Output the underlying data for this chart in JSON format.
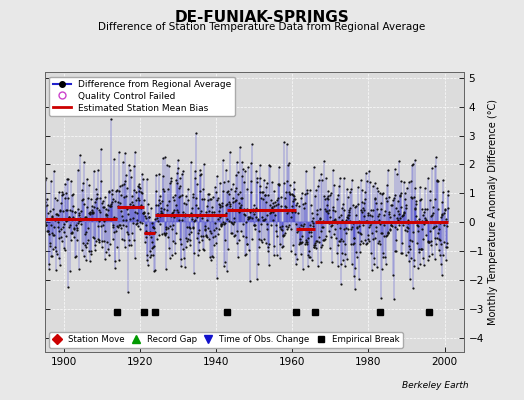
{
  "title": "DE-FUNIAK-SPRINGS",
  "subtitle": "Difference of Station Temperature Data from Regional Average",
  "ylabel": "Monthly Temperature Anomaly Difference (°C)",
  "xlim": [
    1895,
    2005
  ],
  "ylim": [
    -4.5,
    5.2
  ],
  "yticks": [
    -4,
    -3,
    -2,
    -1,
    0,
    1,
    2,
    3,
    4,
    5
  ],
  "xticks": [
    1900,
    1920,
    1940,
    1960,
    1980,
    2000
  ],
  "bg_color": "#e8e8e8",
  "plot_bg_color": "#dcdcdc",
  "line_color": "#2222cc",
  "marker_color": "#111111",
  "bias_color": "#cc0000",
  "seed": 42,
  "start_year": 1895,
  "end_year": 2001,
  "empirical_breaks": [
    1914,
    1921,
    1924,
    1943,
    1961,
    1966,
    1983,
    1996
  ],
  "bias_levels": [
    0.1,
    0.5,
    -0.4,
    0.3,
    0.4,
    -0.3,
    -0.15,
    -0.05,
    -0.05
  ],
  "emp_break_y": -3.1,
  "station_moves": [],
  "record_gaps": [],
  "tobs_changes": []
}
